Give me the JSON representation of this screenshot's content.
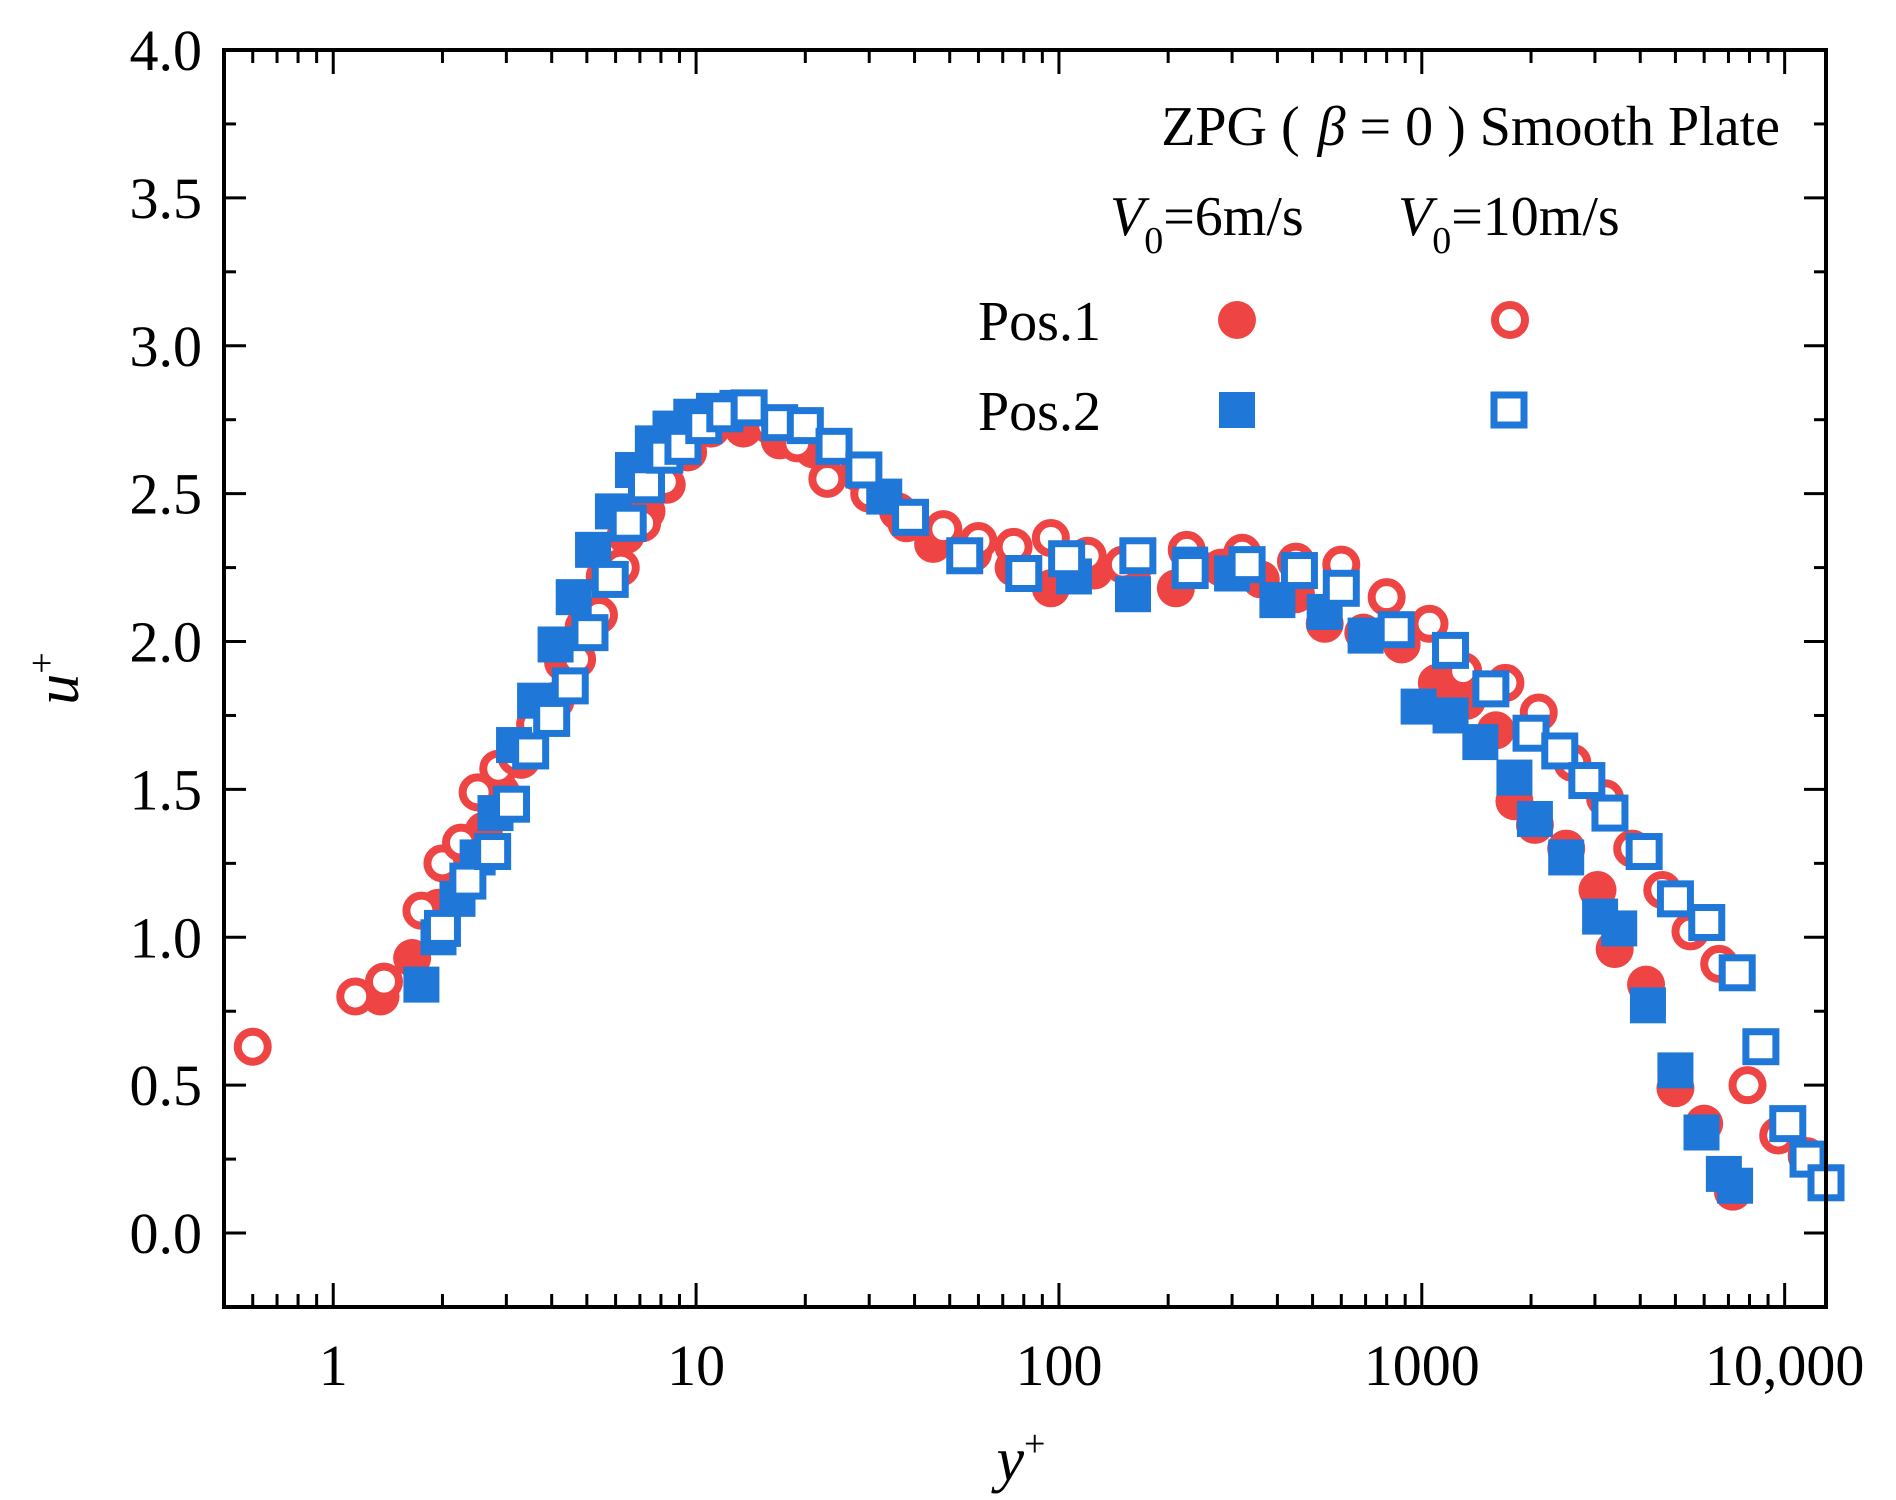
{
  "chart_data": {
    "type": "scatter",
    "xscale": "log",
    "title": "ZPG ( β = 0 ) Smooth Plate",
    "title_parts": [
      "ZPG (",
      "β",
      "= 0 ) Smooth Plate"
    ],
    "xlabel": "y",
    "xlabel_sup": "+",
    "ylabel": "u",
    "ylabel_sup": "+",
    "xlim": [
      0.5,
      13000
    ],
    "ylim": [
      -0.25,
      4.0
    ],
    "grid": false,
    "legend": {
      "placement": "top-right",
      "columns": [
        {
          "v": "V",
          "sub": "0",
          "rest": "=6m/s"
        },
        {
          "v": "V",
          "sub": "0",
          "rest": "=10m/s"
        }
      ],
      "rows": [
        "Pos.1",
        "Pos.2"
      ]
    },
    "x_ticks": [
      {
        "value": 1,
        "label": "1"
      },
      {
        "value": 10,
        "label": "10"
      },
      {
        "value": 100,
        "label": "100"
      },
      {
        "value": 1000,
        "label": "1000"
      },
      {
        "value": 10000,
        "label": "10,000"
      }
    ],
    "y_ticks": [
      {
        "value": 0.0,
        "label": "0.0"
      },
      {
        "value": 0.5,
        "label": "0.5"
      },
      {
        "value": 1.0,
        "label": "1.0"
      },
      {
        "value": 1.5,
        "label": "1.5"
      },
      {
        "value": 2.0,
        "label": "2.0"
      },
      {
        "value": 2.5,
        "label": "2.5"
      },
      {
        "value": 3.0,
        "label": "3.0"
      },
      {
        "value": 3.5,
        "label": "3.5"
      },
      {
        "value": 4.0,
        "label": "4.0"
      }
    ],
    "series": [
      {
        "name": "Pos.1 V0=6m/s",
        "marker": "circle",
        "filled": true,
        "color": "#ee4444",
        "x": [
          1.35,
          1.65,
          1.95,
          2.3,
          2.6,
          2.9,
          3.3,
          3.8,
          4.3,
          4.9,
          5.6,
          6.4,
          7.3,
          8.3,
          9.5,
          11,
          13.5,
          17,
          21,
          28,
          36,
          45,
          58,
          75,
          95,
          125,
          160,
          210,
          280,
          360,
          450,
          540,
          690,
          880,
          1100,
          1330,
          1600,
          1800,
          2050,
          2500,
          3050,
          3400,
          4150,
          5000,
          6000,
          7200
        ],
        "y": [
          0.8,
          0.93,
          1.1,
          1.25,
          1.36,
          1.49,
          1.6,
          1.75,
          1.93,
          2.05,
          2.22,
          2.36,
          2.44,
          2.53,
          2.64,
          2.72,
          2.72,
          2.68,
          2.65,
          2.57,
          2.44,
          2.33,
          2.3,
          2.25,
          2.18,
          2.24,
          2.25,
          2.18,
          2.25,
          2.21,
          2.16,
          2.06,
          2.03,
          1.99,
          1.86,
          1.8,
          1.7,
          1.46,
          1.38,
          1.3,
          1.16,
          0.96,
          0.84,
          0.49,
          0.37,
          0.14
        ]
      },
      {
        "name": "Pos.1 V0=10m/s",
        "marker": "circle",
        "filled": false,
        "color": "#ee4444",
        "x": [
          0.6,
          1.15,
          1.38,
          1.75,
          2.0,
          2.25,
          2.5,
          2.85,
          3.2,
          3.6,
          4.1,
          4.7,
          5.4,
          6.2,
          7.1,
          8.2,
          9.5,
          11,
          13,
          16,
          19,
          23,
          30,
          38,
          48,
          60,
          75,
          95,
          120,
          150,
          225,
          320,
          450,
          600,
          800,
          1050,
          1300,
          1700,
          2100,
          2600,
          3200,
          3800,
          4600,
          5500,
          6600,
          7900,
          9600,
          11500
        ],
        "y": [
          0.63,
          0.8,
          0.85,
          1.09,
          1.25,
          1.32,
          1.49,
          1.57,
          1.61,
          1.72,
          1.8,
          1.94,
          2.09,
          2.25,
          2.4,
          2.54,
          2.64,
          2.73,
          2.78,
          2.73,
          2.67,
          2.55,
          2.5,
          2.4,
          2.38,
          2.34,
          2.32,
          2.35,
          2.29,
          2.26,
          2.31,
          2.3,
          2.27,
          2.26,
          2.15,
          2.06,
          1.9,
          1.86,
          1.76,
          1.59,
          1.47,
          1.3,
          1.16,
          1.02,
          0.91,
          0.5,
          0.33,
          0.26
        ]
      },
      {
        "name": "Pos.2 V0=6m/s",
        "marker": "square",
        "filled": true,
        "color": "#1f77d8",
        "x": [
          1.75,
          1.95,
          2.2,
          2.5,
          2.8,
          3.15,
          3.6,
          4.1,
          4.6,
          5.2,
          5.9,
          6.7,
          7.6,
          8.5,
          9.7,
          11.2,
          13,
          33,
          55,
          110,
          160,
          230,
          300,
          400,
          540,
          700,
          980,
          1200,
          1450,
          1800,
          2050,
          2500,
          3100,
          3500,
          4200,
          5000,
          5900,
          6800,
          7300
        ],
        "y": [
          0.84,
          1.0,
          1.13,
          1.27,
          1.42,
          1.65,
          1.8,
          1.99,
          2.15,
          2.31,
          2.44,
          2.58,
          2.67,
          2.72,
          2.76,
          2.78,
          2.79,
          2.49,
          2.29,
          2.22,
          2.16,
          2.26,
          2.23,
          2.14,
          2.1,
          2.02,
          1.78,
          1.75,
          1.66,
          1.54,
          1.4,
          1.27,
          1.07,
          1.03,
          0.77,
          0.55,
          0.34,
          0.2,
          0.16
        ]
      },
      {
        "name": "Pos.2 V0=10m/s",
        "marker": "square",
        "filled": false,
        "color": "#1f77d8",
        "x": [
          2.0,
          2.35,
          2.75,
          3.1,
          3.5,
          4.0,
          4.5,
          5.1,
          5.8,
          6.5,
          7.3,
          8.2,
          9.2,
          10.5,
          12,
          14,
          17,
          20,
          24,
          29,
          39,
          55,
          80,
          105,
          165,
          230,
          330,
          460,
          600,
          850,
          1200,
          1550,
          2000,
          2400,
          2850,
          3300,
          4100,
          5000,
          6100,
          7400,
          8600,
          10200,
          11600
        ],
        "y": [
          1.03,
          1.19,
          1.29,
          1.45,
          1.63,
          1.74,
          1.85,
          2.03,
          2.21,
          2.4,
          2.53,
          2.63,
          2.66,
          2.73,
          2.77,
          2.79,
          2.74,
          2.73,
          2.66,
          2.58,
          2.42,
          2.29,
          2.23,
          2.28,
          2.29,
          2.24,
          2.26,
          2.24,
          2.18,
          2.04,
          1.97,
          1.84,
          1.69,
          1.63,
          1.53,
          1.42,
          1.29,
          1.13,
          1.05,
          0.88,
          0.63,
          0.37,
          0.25
        ]
      }
    ],
    "extra_points": [
      {
        "series": "Pos.2 V0=10m/s",
        "x": 13000,
        "y": 0.17
      }
    ]
  }
}
